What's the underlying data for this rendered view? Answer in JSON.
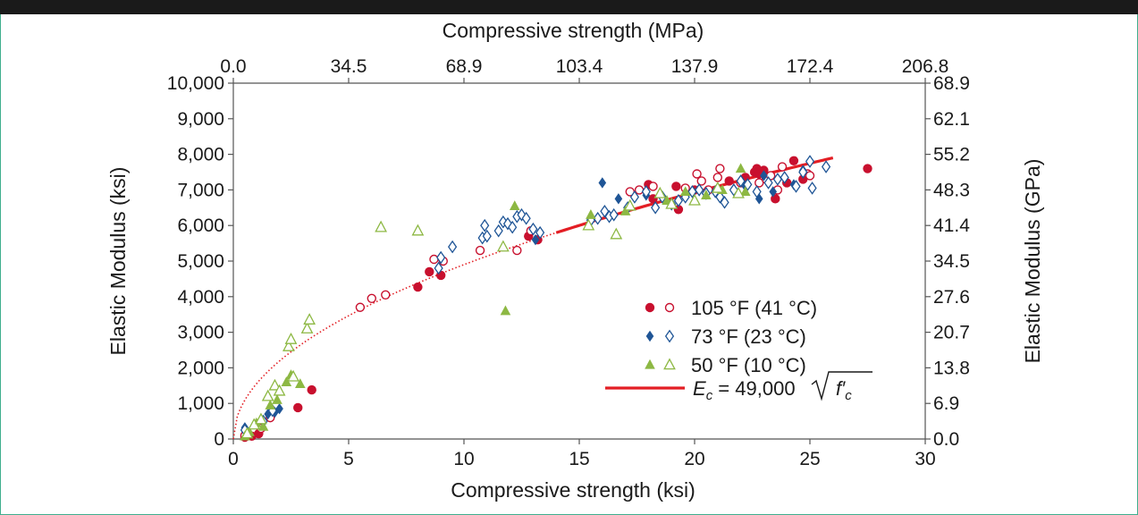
{
  "chart_data": {
    "type": "scatter",
    "x_bottom": {
      "label": "Compressive strength (ksi)",
      "range": [
        0,
        30
      ],
      "ticks": [
        "0",
        "5",
        "10",
        "15",
        "20",
        "25",
        "30"
      ]
    },
    "x_top": {
      "label": "Compressive strength (MPa)",
      "range": [
        0,
        206.8
      ],
      "ticks": [
        "0.0",
        "34.5",
        "68.9",
        "103.4",
        "137.9",
        "172.4",
        "206.8"
      ]
    },
    "y_left": {
      "label": "Elastic Modulus (ksi)",
      "range": [
        0,
        10000
      ],
      "ticks": [
        "0",
        "1,000",
        "2,000",
        "3,000",
        "4,000",
        "5,000",
        "6,000",
        "7,000",
        "8,000",
        "9,000",
        "10,000"
      ]
    },
    "y_right": {
      "label": "Elastic Modulus (GPa)",
      "range": [
        0,
        68.9
      ],
      "ticks": [
        "0.0",
        "6.9",
        "13.8",
        "20.7",
        "27.6",
        "34.5",
        "41.4",
        "48.3",
        "55.2",
        "62.1",
        "68.9"
      ]
    },
    "grid": false,
    "legend_position": "lower-right",
    "colors": {
      "red": "#c8102e",
      "blue": "#1f5596",
      "green": "#8db843",
      "curve": "#e31e24"
    },
    "legend": [
      {
        "label": "105 °F (41 °C)",
        "markers": [
          "filled-circle",
          "open-circle"
        ],
        "color": "#c8102e"
      },
      {
        "label": "73 °F (23 °C)",
        "markers": [
          "filled-diamond",
          "open-diamond"
        ],
        "color": "#1f5596"
      },
      {
        "label": "50 °F (10 °C)",
        "markers": [
          "filled-triangle",
          "open-triangle"
        ],
        "color": "#8db843"
      },
      {
        "label_prefix": "E",
        "label_sub": "c",
        "label_mid": " = 49,000",
        "label_root": "f′",
        "label_root_sub": "c",
        "marker": "line",
        "color": "#e31e24"
      }
    ],
    "curve": {
      "coefficient": 49000,
      "x_solid": [
        14,
        26
      ],
      "x_dotted": [
        0,
        14
      ]
    },
    "series": [
      {
        "name": "105 °F (41 °C)",
        "marker": "filled-circle",
        "color": "#c8102e",
        "points": [
          [
            0.5,
            50
          ],
          [
            0.8,
            80
          ],
          [
            1.1,
            150
          ],
          [
            2.8,
            880
          ],
          [
            3.4,
            1380
          ],
          [
            8.0,
            4270
          ],
          [
            8.5,
            4700
          ],
          [
            9.0,
            4600
          ],
          [
            12.8,
            5700
          ],
          [
            13.2,
            5600
          ],
          [
            18.0,
            7150
          ],
          [
            18.2,
            6750
          ],
          [
            19.2,
            7100
          ],
          [
            19.3,
            6450
          ],
          [
            20.0,
            7000
          ],
          [
            21.5,
            7250
          ],
          [
            22.2,
            7350
          ],
          [
            22.6,
            7500
          ],
          [
            22.7,
            7600
          ],
          [
            22.8,
            7450
          ],
          [
            23.0,
            7550
          ],
          [
            23.5,
            6750
          ],
          [
            24.0,
            7200
          ],
          [
            24.3,
            7820
          ],
          [
            24.7,
            7300
          ],
          [
            27.5,
            7600
          ]
        ]
      },
      {
        "name": "105 °F (41 °C)",
        "marker": "open-circle",
        "color": "#c8102e",
        "points": [
          [
            0.5,
            100
          ],
          [
            1.2,
            300
          ],
          [
            1.6,
            600
          ],
          [
            5.5,
            3700
          ],
          [
            6.0,
            3950
          ],
          [
            6.6,
            4050
          ],
          [
            8.7,
            5050
          ],
          [
            9.1,
            5000
          ],
          [
            10.7,
            5300
          ],
          [
            12.3,
            5300
          ],
          [
            12.9,
            5850
          ],
          [
            17.2,
            6950
          ],
          [
            17.6,
            7000
          ],
          [
            18.2,
            7100
          ],
          [
            19.6,
            7050
          ],
          [
            20.1,
            7450
          ],
          [
            20.3,
            7250
          ],
          [
            20.6,
            7000
          ],
          [
            21.0,
            7350
          ],
          [
            21.1,
            7600
          ],
          [
            22.0,
            7200
          ],
          [
            22.8,
            7200
          ],
          [
            23.1,
            7300
          ],
          [
            23.3,
            7400
          ],
          [
            23.6,
            7000
          ],
          [
            23.8,
            7650
          ],
          [
            24.9,
            7450
          ],
          [
            25.0,
            7400
          ]
        ]
      },
      {
        "name": "73 °F (23 °C)",
        "marker": "filled-diamond",
        "color": "#1f5596",
        "points": [
          [
            0.5,
            320
          ],
          [
            1.0,
            420
          ],
          [
            1.5,
            700
          ],
          [
            1.8,
            750
          ],
          [
            2.0,
            850
          ],
          [
            13.1,
            5600
          ],
          [
            16.0,
            7200
          ],
          [
            16.7,
            6750
          ],
          [
            17.9,
            6850
          ],
          [
            22.2,
            7100
          ],
          [
            22.8,
            6750
          ],
          [
            23.0,
            7400
          ],
          [
            23.4,
            6950
          ],
          [
            24.3,
            7150
          ],
          [
            24.7,
            7550
          ]
        ]
      },
      {
        "name": "73 °F (23 °C)",
        "marker": "open-diamond",
        "color": "#1f5596",
        "points": [
          [
            0.5,
            250
          ],
          [
            1.3,
            500
          ],
          [
            1.7,
            800
          ],
          [
            8.9,
            4800
          ],
          [
            9.0,
            5100
          ],
          [
            9.5,
            5400
          ],
          [
            10.8,
            5650
          ],
          [
            10.9,
            6000
          ],
          [
            11.0,
            5700
          ],
          [
            11.5,
            5850
          ],
          [
            11.7,
            6100
          ],
          [
            11.9,
            6050
          ],
          [
            12.1,
            5950
          ],
          [
            12.3,
            6250
          ],
          [
            12.5,
            6300
          ],
          [
            12.7,
            6200
          ],
          [
            13.0,
            5900
          ],
          [
            13.3,
            5800
          ],
          [
            15.5,
            6150
          ],
          [
            15.8,
            6200
          ],
          [
            16.1,
            6400
          ],
          [
            16.3,
            6250
          ],
          [
            16.5,
            6300
          ],
          [
            17.1,
            6500
          ],
          [
            17.4,
            6800
          ],
          [
            17.9,
            6950
          ],
          [
            18.3,
            6500
          ],
          [
            18.6,
            6800
          ],
          [
            19.0,
            6600
          ],
          [
            19.3,
            6700
          ],
          [
            19.6,
            6800
          ],
          [
            19.9,
            6950
          ],
          [
            20.2,
            7000
          ],
          [
            20.5,
            6900
          ],
          [
            20.9,
            6950
          ],
          [
            21.1,
            6800
          ],
          [
            21.3,
            6650
          ],
          [
            21.7,
            7000
          ],
          [
            22.0,
            7250
          ],
          [
            22.3,
            7150
          ],
          [
            22.7,
            6950
          ],
          [
            23.2,
            7200
          ],
          [
            23.6,
            7300
          ],
          [
            23.9,
            7350
          ],
          [
            24.4,
            7100
          ],
          [
            24.7,
            7500
          ],
          [
            25.0,
            7800
          ],
          [
            25.1,
            7050
          ],
          [
            25.7,
            7650
          ]
        ]
      },
      {
        "name": "50 °F (10 °C)",
        "marker": "filled-triangle",
        "color": "#8db843",
        "points": [
          [
            0.5,
            80
          ],
          [
            0.7,
            200
          ],
          [
            1.0,
            450
          ],
          [
            1.3,
            350
          ],
          [
            1.6,
            950
          ],
          [
            1.9,
            1100
          ],
          [
            2.3,
            1600
          ],
          [
            2.5,
            1800
          ],
          [
            2.9,
            1550
          ],
          [
            11.8,
            3600
          ],
          [
            12.2,
            6550
          ],
          [
            15.5,
            6300
          ],
          [
            17.0,
            6400
          ],
          [
            18.8,
            6700
          ],
          [
            19.6,
            6950
          ],
          [
            20.5,
            6850
          ],
          [
            21.2,
            7000
          ],
          [
            22.0,
            7600
          ],
          [
            22.2,
            6950
          ]
        ]
      },
      {
        "name": "50 °F (10 °C)",
        "marker": "open-triangle",
        "color": "#8db843",
        "points": [
          [
            0.6,
            150
          ],
          [
            0.9,
            400
          ],
          [
            1.2,
            550
          ],
          [
            1.5,
            1200
          ],
          [
            1.8,
            1500
          ],
          [
            2.0,
            1350
          ],
          [
            2.4,
            2600
          ],
          [
            2.5,
            2800
          ],
          [
            2.6,
            1750
          ],
          [
            3.2,
            3100
          ],
          [
            3.3,
            3350
          ],
          [
            6.4,
            5950
          ],
          [
            8.0,
            5850
          ],
          [
            11.7,
            5400
          ],
          [
            15.4,
            6000
          ],
          [
            16.6,
            5750
          ],
          [
            17.2,
            6550
          ],
          [
            18.5,
            6900
          ],
          [
            19.0,
            6600
          ],
          [
            20.0,
            6700
          ],
          [
            21.0,
            7050
          ],
          [
            21.9,
            6900
          ]
        ]
      }
    ]
  }
}
